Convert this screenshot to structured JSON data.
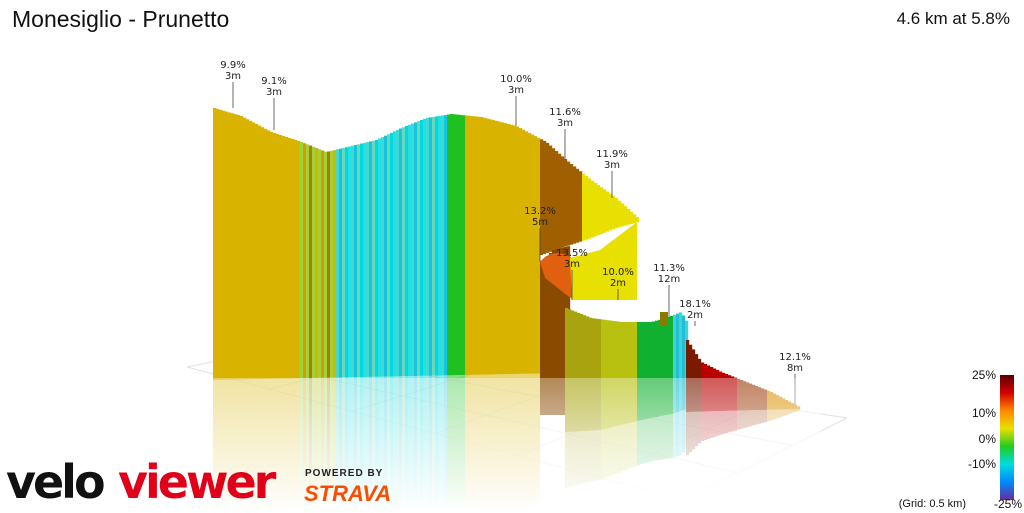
{
  "header": {
    "title": "Monesiglio - Prunetto",
    "summary": "4.6 km at 5.8%"
  },
  "chart_data": {
    "type": "area",
    "title": "Monesiglio - Prunetto",
    "segments": [
      {
        "gradient": "9.9%",
        "length": "3m"
      },
      {
        "gradient": "9.1%",
        "length": "3m"
      },
      {
        "gradient": "10.0%",
        "length": "3m"
      },
      {
        "gradient": "11.6%",
        "length": "3m"
      },
      {
        "gradient": "11.9%",
        "length": "3m"
      },
      {
        "gradient": "13.2%",
        "length": "5m"
      },
      {
        "gradient": "13.5%",
        "length": "3m"
      },
      {
        "gradient": "10.0%",
        "length": "2m"
      },
      {
        "gradient": "11.3%",
        "length": "12m"
      },
      {
        "gradient": "18.1%",
        "length": "2m"
      },
      {
        "gradient": "12.1%",
        "length": "8m"
      }
    ],
    "legend": {
      "labels": [
        "25%",
        "10%",
        "0%",
        "-10%",
        "-25%"
      ],
      "colors": [
        "#5a0000",
        "#d40000",
        "#ff8800",
        "#e8e000",
        "#22cc22",
        "#00dcdc",
        "#0088ff",
        "#6a2c9a"
      ]
    },
    "grid_note": "(Grid: 0.5 km)"
  },
  "branding": {
    "logo_part1": "velo",
    "logo_part2": "viewer",
    "powered_by": "POWERED BY",
    "strava": "STRAVA",
    "logo_color": "#e0001a"
  }
}
